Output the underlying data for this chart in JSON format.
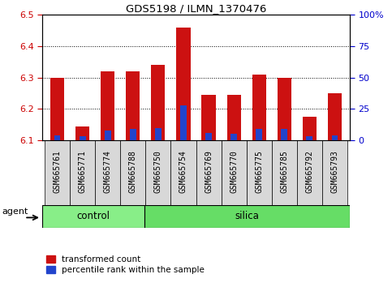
{
  "title": "GDS5198 / ILMN_1370476",
  "samples": [
    "GSM665761",
    "GSM665771",
    "GSM665774",
    "GSM665788",
    "GSM665750",
    "GSM665754",
    "GSM665769",
    "GSM665770",
    "GSM665775",
    "GSM665785",
    "GSM665792",
    "GSM665793"
  ],
  "groups": [
    "control",
    "control",
    "control",
    "control",
    "silica",
    "silica",
    "silica",
    "silica",
    "silica",
    "silica",
    "silica",
    "silica"
  ],
  "transformed_count": [
    6.3,
    6.145,
    6.32,
    6.32,
    6.34,
    6.46,
    6.245,
    6.245,
    6.31,
    6.3,
    6.175,
    6.25
  ],
  "percentile_rank": [
    4,
    3,
    8,
    9,
    10,
    28,
    6,
    5,
    9,
    9,
    3,
    4
  ],
  "bar_base": 6.1,
  "ylim_left": [
    6.1,
    6.5
  ],
  "ylim_right": [
    0,
    100
  ],
  "yticks_left": [
    6.1,
    6.2,
    6.3,
    6.4,
    6.5
  ],
  "yticks_right": [
    0,
    25,
    50,
    75,
    100
  ],
  "red_color": "#cc1111",
  "blue_color": "#2244cc",
  "control_color": "#88ee88",
  "silica_color": "#66dd66",
  "agent_label": "agent",
  "group_labels": [
    "control",
    "silica"
  ],
  "legend_red": "transformed count",
  "legend_blue": "percentile rank within the sample",
  "bar_width": 0.55,
  "tick_label_color_left": "#cc0000",
  "tick_label_color_right": "#0000cc",
  "xtick_bg": "#d8d8d8",
  "ctrl_count": 4,
  "silica_count": 8
}
